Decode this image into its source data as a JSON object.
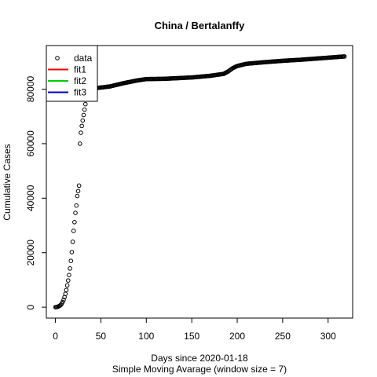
{
  "chart_data": {
    "type": "scatter",
    "title": "China / Bertalanffy",
    "xlabel": "Days since 2020-01-18",
    "ylabel": "Cumulative Cases",
    "subtitle": "Simple Moving Avarage (window size = 7)",
    "xlim": [
      -10,
      327
    ],
    "ylim": [
      -4000,
      96000
    ],
    "xticks": [
      0,
      50,
      100,
      150,
      200,
      250,
      300
    ],
    "yticks": [
      0,
      20000,
      40000,
      60000,
      80000
    ],
    "grid": false,
    "legend_position": "top-left",
    "legend": [
      {
        "name": "data",
        "kind": "point",
        "color": "#000000"
      },
      {
        "name": "fit1",
        "kind": "line",
        "color": "#ff0000"
      },
      {
        "name": "fit2",
        "kind": "line",
        "color": "#00cd00"
      },
      {
        "name": "fit3",
        "kind": "line",
        "color": "#0000cd"
      }
    ],
    "series": [
      {
        "name": "data",
        "color": "#000000",
        "points": [
          [
            0,
            0
          ],
          [
            1,
            50
          ],
          [
            2,
            120
          ],
          [
            3,
            220
          ],
          [
            4,
            380
          ],
          [
            5,
            600
          ],
          [
            6,
            900
          ],
          [
            7,
            1300
          ],
          [
            8,
            1900
          ],
          [
            9,
            2700
          ],
          [
            10,
            3700
          ],
          [
            11,
            4900
          ],
          [
            12,
            6300
          ],
          [
            13,
            8000
          ],
          [
            14,
            9800
          ],
          [
            15,
            11800
          ],
          [
            16,
            14200
          ],
          [
            17,
            17000
          ],
          [
            18,
            20200
          ],
          [
            19,
            24000
          ],
          [
            20,
            28000
          ],
          [
            21,
            31200
          ],
          [
            22,
            34600
          ],
          [
            23,
            37300
          ],
          [
            24,
            40800
          ],
          [
            25,
            42600
          ],
          [
            26,
            44600
          ],
          [
            27,
            60000
          ],
          [
            28,
            64000
          ],
          [
            29,
            66500
          ],
          [
            30,
            68500
          ],
          [
            31,
            70500
          ],
          [
            32,
            72500
          ],
          [
            33,
            74500
          ],
          [
            34,
            76500
          ],
          [
            35,
            78200
          ],
          [
            36,
            79300
          ],
          [
            37,
            79700
          ],
          [
            38,
            80000
          ],
          [
            39,
            80100
          ],
          [
            40,
            80200
          ],
          [
            60,
            81000
          ],
          [
            75,
            82200
          ],
          [
            90,
            83200
          ],
          [
            100,
            83700
          ],
          [
            120,
            83800
          ],
          [
            150,
            84300
          ],
          [
            170,
            84900
          ],
          [
            185,
            85600
          ],
          [
            190,
            86500
          ],
          [
            195,
            87700
          ],
          [
            200,
            88500
          ],
          [
            210,
            89300
          ],
          [
            230,
            89900
          ],
          [
            250,
            90400
          ],
          [
            270,
            90800
          ],
          [
            290,
            91300
          ],
          [
            310,
            91800
          ],
          [
            318,
            92000
          ]
        ]
      }
    ]
  }
}
